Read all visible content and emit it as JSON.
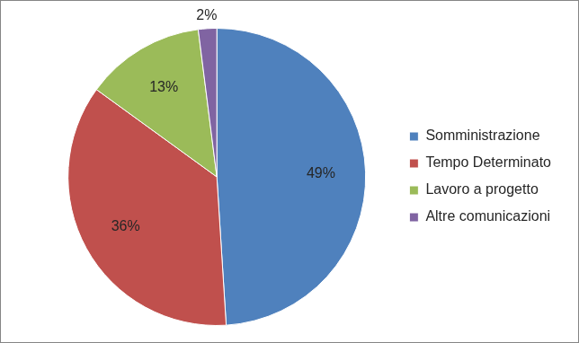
{
  "chart_data": {
    "type": "pie",
    "categories": [
      "Somministrazione",
      "Tempo Determinato",
      "Lavoro a progetto",
      "Altre comunicazioni"
    ],
    "values": [
      49,
      36,
      13,
      2
    ],
    "value_labels": [
      "49%",
      "36%",
      "13%",
      "2%"
    ],
    "colors": [
      "#4f81bd",
      "#c0504d",
      "#9bbb59",
      "#8064a2"
    ],
    "data_labels": true,
    "legend": "right"
  }
}
